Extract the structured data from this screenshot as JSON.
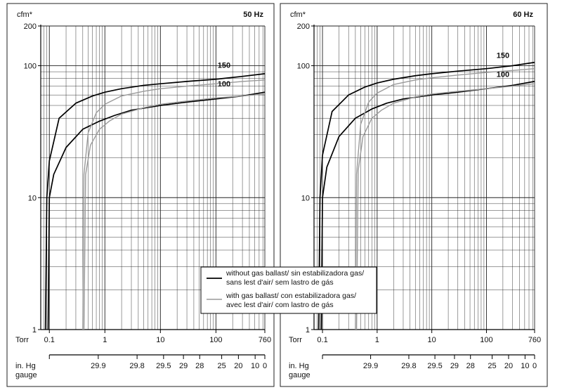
{
  "chart_data": [
    {
      "type": "line",
      "title": "50 Hz",
      "ylabel": "cfm*",
      "xlabel": "Torr",
      "xscale": "log",
      "yscale": "log",
      "xlim": [
        0.07,
        760
      ],
      "ylim": [
        1,
        200
      ],
      "x_ticks": [
        {
          "v": 0.1,
          "label": "0.1"
        },
        {
          "v": 1,
          "label": "1"
        },
        {
          "v": 10,
          "label": "10"
        },
        {
          "v": 100,
          "label": "100"
        },
        {
          "v": 760,
          "label": "760"
        }
      ],
      "y_ticks": [
        {
          "v": 1,
          "label": "1"
        },
        {
          "v": 10,
          "label": "10"
        },
        {
          "v": 100,
          "label": "100"
        },
        {
          "v": 200,
          "label": "200"
        }
      ],
      "secondary_axis": {
        "label_line1": "in. Hg",
        "label_line2": "gauge",
        "ticks": [
          {
            "torr": 0.1,
            "label": ""
          },
          {
            "torr": 0.76,
            "label": "29.9"
          },
          {
            "torr": 3.8,
            "label": "29.8"
          },
          {
            "torr": 11.4,
            "label": "29.5"
          },
          {
            "torr": 26,
            "label": "29"
          },
          {
            "torr": 51,
            "label": "28"
          },
          {
            "torr": 127,
            "label": "25"
          },
          {
            "torr": 254,
            "label": "20"
          },
          {
            "torr": 508,
            "label": "10"
          },
          {
            "torr": 760,
            "label": "0"
          }
        ]
      },
      "series": [
        {
          "name": "150",
          "style": "without",
          "x": [
            0.085,
            0.09,
            0.1,
            0.15,
            0.3,
            0.6,
            1,
            2,
            5,
            10,
            30,
            100,
            300,
            760
          ],
          "y": [
            1,
            10,
            19,
            40,
            52,
            59,
            63,
            67,
            71,
            73,
            76,
            79,
            83,
            87
          ]
        },
        {
          "name": "100",
          "style": "without",
          "x": [
            0.095,
            0.1,
            0.12,
            0.2,
            0.4,
            0.8,
            1.5,
            3,
            10,
            30,
            100,
            300,
            760
          ],
          "y": [
            1,
            10,
            15,
            24,
            33,
            38,
            42,
            46,
            50,
            53,
            56,
            59,
            63
          ]
        },
        {
          "name": "",
          "style": "with",
          "x": [
            0.4,
            0.42,
            0.5,
            0.7,
            1,
            2,
            5,
            10,
            30,
            100,
            300,
            760
          ],
          "y": [
            1,
            15,
            31,
            44,
            51,
            59,
            64,
            67,
            70,
            73,
            76,
            78
          ]
        },
        {
          "name": "",
          "style": "with",
          "x": [
            0.42,
            0.45,
            0.55,
            0.8,
            1.2,
            2,
            5,
            10,
            30,
            100,
            300,
            760
          ],
          "y": [
            1,
            15,
            25,
            33,
            38,
            43,
            48,
            51,
            54,
            57,
            59,
            61
          ]
        }
      ],
      "annotations": [
        {
          "text": "150",
          "x": 140,
          "y": 93
        },
        {
          "text": "100",
          "x": 140,
          "y": 67
        }
      ]
    },
    {
      "type": "line",
      "title": "60 Hz",
      "ylabel": "cfm*",
      "xlabel": "Torr",
      "xscale": "log",
      "yscale": "log",
      "xlim": [
        0.07,
        760
      ],
      "ylim": [
        1,
        200
      ],
      "x_ticks": [
        {
          "v": 0.1,
          "label": "0.1"
        },
        {
          "v": 1,
          "label": "1"
        },
        {
          "v": 10,
          "label": "10"
        },
        {
          "v": 100,
          "label": "100"
        },
        {
          "v": 760,
          "label": "760"
        }
      ],
      "y_ticks": [
        {
          "v": 1,
          "label": "1"
        },
        {
          "v": 10,
          "label": "10"
        },
        {
          "v": 100,
          "label": "100"
        },
        {
          "v": 200,
          "label": "200"
        }
      ],
      "secondary_axis": {
        "label_line1": "in. Hg",
        "label_line2": "gauge",
        "ticks": [
          {
            "torr": 0.1,
            "label": ""
          },
          {
            "torr": 0.76,
            "label": "29.9"
          },
          {
            "torr": 3.8,
            "label": "29.8"
          },
          {
            "torr": 11.4,
            "label": "29.5"
          },
          {
            "torr": 26,
            "label": "29"
          },
          {
            "torr": 51,
            "label": "28"
          },
          {
            "torr": 127,
            "label": "25"
          },
          {
            "torr": 254,
            "label": "20"
          },
          {
            "torr": 508,
            "label": "10"
          },
          {
            "torr": 760,
            "label": "0"
          }
        ]
      },
      "series": [
        {
          "name": "150",
          "style": "without",
          "x": [
            0.085,
            0.09,
            0.1,
            0.15,
            0.3,
            0.6,
            1,
            2,
            5,
            10,
            30,
            100,
            300,
            760
          ],
          "y": [
            1,
            10,
            21,
            45,
            60,
            69,
            74,
            79,
            84,
            87,
            91,
            95,
            100,
            106
          ]
        },
        {
          "name": "100",
          "style": "without",
          "x": [
            0.095,
            0.1,
            0.12,
            0.2,
            0.4,
            0.8,
            1.5,
            3,
            10,
            30,
            100,
            300,
            760
          ],
          "y": [
            1,
            10,
            17,
            29,
            40,
            47,
            52,
            56,
            60,
            63,
            67,
            71,
            76
          ]
        },
        {
          "name": "",
          "style": "with",
          "x": [
            0.4,
            0.42,
            0.5,
            0.7,
            1,
            2,
            5,
            10,
            30,
            100,
            300,
            760
          ],
          "y": [
            1,
            15,
            36,
            53,
            62,
            72,
            78,
            81,
            85,
            89,
            92,
            95
          ]
        },
        {
          "name": "",
          "style": "with",
          "x": [
            0.42,
            0.45,
            0.55,
            0.8,
            1.2,
            2,
            5,
            10,
            30,
            100,
            300,
            760
          ],
          "y": [
            1,
            16,
            29,
            40,
            46,
            52,
            58,
            61,
            64,
            67,
            70,
            73
          ]
        }
      ],
      "annotations": [
        {
          "text": "150",
          "x": 200,
          "y": 110
        },
        {
          "text": "100",
          "x": 200,
          "y": 79
        }
      ]
    }
  ],
  "legend": {
    "without": [
      "without gas ballast/  sin estabilizadora gas/",
      "sans lest d'air/  sem lastro de gás"
    ],
    "with": [
      "with gas ballast/  con estabilizadora gas/",
      "avec lest d'air/  com lastro de gás"
    ],
    "colors": {
      "without": "#000000",
      "with": "#9a9a9a"
    }
  }
}
